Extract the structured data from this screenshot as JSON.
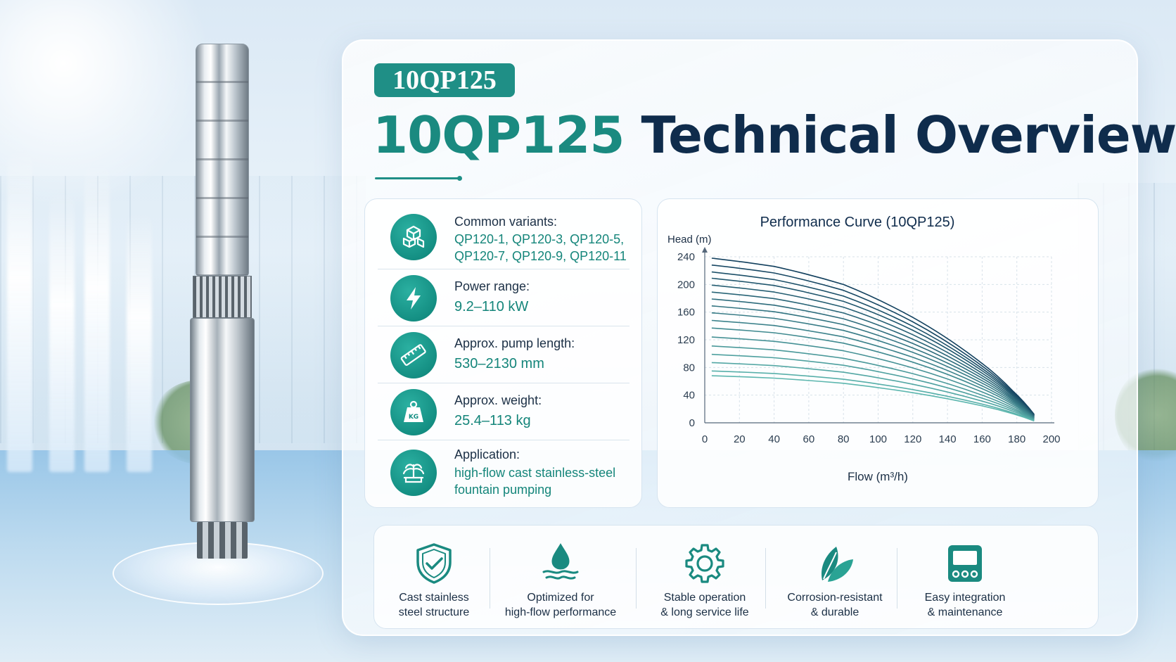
{
  "badge": "10QP125",
  "title": {
    "model": "10QP125",
    "rest": "Technical Overview"
  },
  "specs": [
    {
      "label": "Common variants:",
      "value_lines": [
        "QP120-1, QP120-3, QP120-5,",
        "QP120-7, QP120-9, QP120-11"
      ],
      "icon": "cubes-icon"
    },
    {
      "label": "Power range:",
      "value_lines": [
        "9.2–110 kW"
      ],
      "icon": "lightning-icon"
    },
    {
      "label": "Approx. pump length:",
      "value_lines": [
        "530–2130 mm"
      ],
      "icon": "ruler-icon"
    },
    {
      "label": "Approx. weight:",
      "value_lines": [
        "25.4–113 kg"
      ],
      "icon": "weight-icon"
    },
    {
      "label": "Application:",
      "value_lines": [
        "high-flow cast stainless-steel",
        "fountain pumping"
      ],
      "icon": "fountain-icon"
    }
  ],
  "features": [
    {
      "lines": [
        "Cast stainless",
        "steel structure"
      ],
      "icon": "shield-check-icon"
    },
    {
      "lines": [
        "Optimized for",
        "high-flow performance"
      ],
      "icon": "water-drop-icon"
    },
    {
      "lines": [
        "Stable operation",
        "& long service life"
      ],
      "icon": "gear-icon"
    },
    {
      "lines": [
        "Corrosion-resistant",
        "& durable"
      ],
      "icon": "leaf-icon"
    },
    {
      "lines": [
        "Easy integration",
        "& maintenance"
      ],
      "icon": "control-panel-icon"
    }
  ],
  "colors": {
    "accent": "#1f8f86",
    "title_dark": "#0f2c4c",
    "value_teal": "#14857a"
  },
  "chart_data": {
    "type": "line",
    "title": "Performance Curve (10QP125)",
    "xlabel": "Flow (m³/h)",
    "ylabel": "Head (m)",
    "xlim": [
      0,
      200
    ],
    "ylim": [
      0,
      240
    ],
    "xticks": [
      0,
      20,
      40,
      60,
      80,
      100,
      120,
      140,
      160,
      180,
      200
    ],
    "yticks": [
      0,
      40,
      80,
      120,
      160,
      200,
      240
    ],
    "grid": true,
    "curve_shape": {
      "flow_points": [
        4,
        40,
        80,
        120,
        160,
        178,
        190
      ],
      "head_fraction_of_shutoff": [
        1.0,
        0.95,
        0.84,
        0.64,
        0.36,
        0.19,
        0.08
      ]
    },
    "series_shutoff_head": [
      238,
      228,
      218,
      209,
      199,
      189,
      179,
      169,
      159,
      148,
      137,
      124,
      111,
      99,
      87,
      75,
      68
    ],
    "end_flow": 190,
    "end_head": 2,
    "colors": {
      "dark": "#12405e",
      "light": "#5cb6ae"
    }
  }
}
